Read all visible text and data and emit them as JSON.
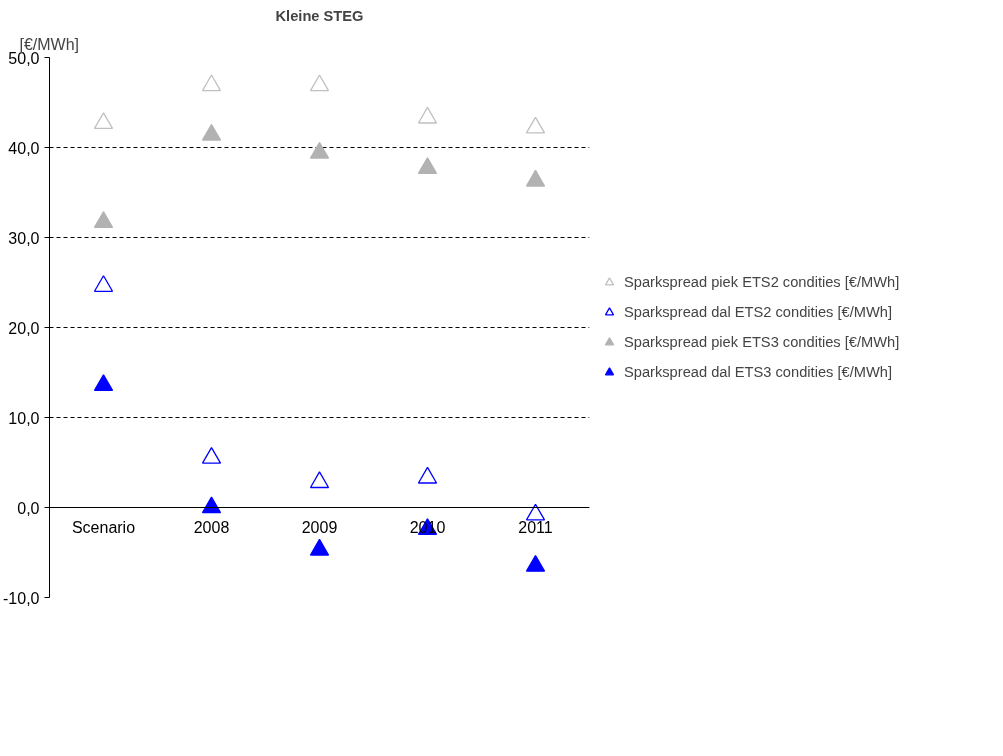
{
  "chart_data": {
    "type": "scatter",
    "title": "Kleine STEG",
    "ylabel": "[€/MWh]",
    "categories": [
      "Scenario",
      "2008",
      "2009",
      "2010",
      "2011"
    ],
    "grid": "y",
    "legend": "right",
    "ylim": [
      -10,
      50
    ],
    "yticks": [
      {
        "value": -10,
        "label": "-10,0"
      },
      {
        "value": 0,
        "label": "0,0"
      },
      {
        "value": 10,
        "label": "10,0"
      },
      {
        "value": 20,
        "label": "20,0"
      },
      {
        "value": 30,
        "label": "30,0"
      },
      {
        "value": 40,
        "label": "40,0"
      },
      {
        "value": 50,
        "label": "50,0"
      }
    ],
    "series": [
      {
        "name": "Sparkspread piek ETS2 condities [€/MWh]",
        "color": "#c0c0c0",
        "marker": "triangle_open",
        "values": [
          42.7,
          46.9,
          46.9,
          43.3,
          42.2
        ]
      },
      {
        "name": "Sparkspread dal ETS2 condities [€/MWh]",
        "color": "#0000ff",
        "marker": "triangle_open",
        "values": [
          24.6,
          5.5,
          2.8,
          3.3,
          -0.8
        ]
      },
      {
        "name": "Sparkspread piek ETS3 condities [€/MWh]",
        "color": "#b2b2b2",
        "marker": "triangle",
        "values": [
          31.7,
          41.4,
          39.4,
          37.7,
          36.3
        ]
      },
      {
        "name": "Sparkspread dal ETS3 condities [€/MWh]",
        "color": "#0000ff",
        "marker": "triangle",
        "values": [
          13.6,
          0.0,
          -4.7,
          -2.4,
          -6.5
        ]
      }
    ]
  }
}
